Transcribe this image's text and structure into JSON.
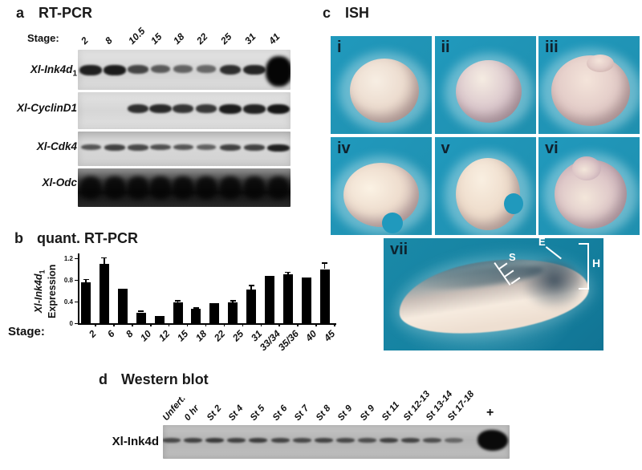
{
  "figure": {
    "panel_a": {
      "tag": "a",
      "title": "RT-PCR",
      "stage_label": "Stage:",
      "stages": [
        "2",
        "8",
        "10.5",
        "15",
        "18",
        "22",
        "25",
        "31",
        "41"
      ],
      "rows": [
        {
          "label": "Xl-Ink4d",
          "label_sub": "1",
          "bands": [
            0.92,
            0.95,
            0.62,
            0.45,
            0.38,
            0.33,
            0.8,
            0.88,
            1.0
          ]
        },
        {
          "label": "Xl-CyclinD1",
          "label_sub": "",
          "bands": [
            0,
            0,
            0.8,
            0.85,
            0.75,
            0.72,
            0.95,
            0.9,
            1.0
          ]
        },
        {
          "label": "Xl-Cdk4",
          "label_sub": "",
          "bands": [
            0.5,
            0.65,
            0.6,
            0.55,
            0.5,
            0.4,
            0.65,
            0.65,
            0.92
          ]
        },
        {
          "label": "Xl-Odc",
          "label_sub": "",
          "smear": true,
          "bands": [
            1,
            1,
            1,
            1,
            1,
            1,
            1,
            1,
            1
          ]
        }
      ]
    },
    "panel_b": {
      "tag": "b",
      "title": "quant. RT-PCR",
      "stage_label": "Stage:",
      "ylabel_line1": "Xl-Ink4d",
      "ylabel_sub": "1",
      "ylabel_line2": "Expression"
    },
    "panel_c": {
      "tag": "c",
      "title": "ISH",
      "tiles": [
        "i",
        "ii",
        "iii",
        "iv",
        "v",
        "vi"
      ],
      "large_tile_label": "vii",
      "annotations": {
        "somites": "S",
        "eye": "E",
        "head": "H"
      }
    },
    "panel_d": {
      "tag": "d",
      "title": "Western blot",
      "lanes": [
        "Unfert.",
        "0 hr",
        "St 2",
        "St 4",
        "St 5",
        "St 6",
        "St 7",
        "St 8",
        "St 9",
        "St 9",
        "St 11",
        "St 12-13",
        "St 13-14",
        "St 17-18"
      ],
      "band_intensities": [
        0.55,
        0.62,
        0.68,
        0.62,
        0.66,
        0.6,
        0.55,
        0.6,
        0.55,
        0.5,
        0.62,
        0.6,
        0.5,
        0.28
      ],
      "positive_label": "+",
      "protein_label": "Xl-Ink4d"
    },
    "colors": {
      "tile_teal": "#2099bd",
      "tile_teal_dark": "#1f8fae",
      "vii_teal": "#14809f",
      "embryo_cream": "#ecdccf",
      "band_black": "#161616",
      "bar_black": "#000000",
      "annotation_white": "#ffffff"
    }
  },
  "chart_data": {
    "type": "bar",
    "title": "quant. RT-PCR",
    "xlabel": "Stage:",
    "ylabel": "Xl-Ink4d1 Expression",
    "categories": [
      "2",
      "6",
      "8",
      "10",
      "12",
      "15",
      "18",
      "22",
      "25",
      "31",
      "33/34",
      "35/36",
      "40",
      "45"
    ],
    "values": [
      0.75,
      1.1,
      0.63,
      0.2,
      0.14,
      0.38,
      0.26,
      0.37,
      0.38,
      0.62,
      0.87,
      0.9,
      0.85,
      1.0
    ],
    "errors": [
      0.07,
      0.12,
      0.02,
      0.03,
      0.02,
      0.05,
      0.03,
      0.02,
      0.05,
      0.09,
      0.02,
      0.05,
      0.02,
      0.12
    ],
    "yticks": [
      0,
      0.4,
      0.8,
      1.2
    ],
    "ylim": [
      0,
      1.3
    ],
    "grid": false,
    "legend": false,
    "bar_color": "#000000"
  }
}
